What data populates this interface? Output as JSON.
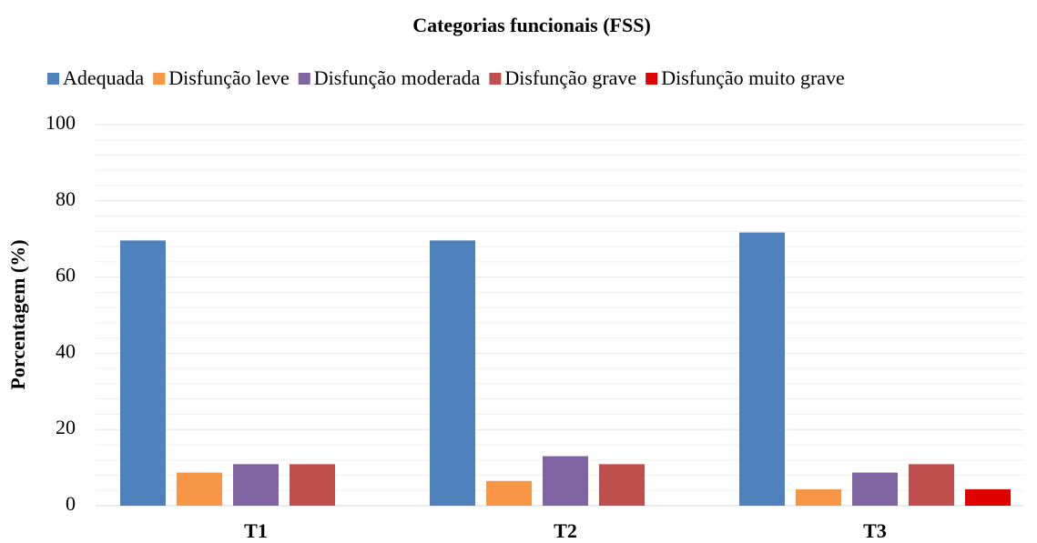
{
  "chart_data": {
    "type": "bar",
    "title": "Categorias funcionais (FSS)",
    "y_label": "Porcentagem (%)",
    "categories": [
      "T1",
      "T2",
      "T3"
    ],
    "series": [
      {
        "name": "Adequada",
        "color": "#4f81bd",
        "values": [
          69.6,
          69.6,
          71.7
        ]
      },
      {
        "name": "Disfunção leve",
        "color": "#f79646",
        "values": [
          8.7,
          6.5,
          4.3
        ]
      },
      {
        "name": "Disfunção moderada",
        "color": "#8064a2",
        "values": [
          10.9,
          13.0,
          8.7
        ]
      },
      {
        "name": "Disfunção grave",
        "color": "#c0504d",
        "values": [
          10.9,
          10.9,
          10.9
        ]
      },
      {
        "name": "Disfunção muito grave",
        "color": "#e00000",
        "values": [
          0,
          0,
          4.3
        ]
      }
    ],
    "ylim": [
      0,
      100
    ],
    "yticks": [
      0,
      20,
      40,
      60,
      80,
      100
    ],
    "grid": true,
    "minor_grid": true,
    "legend": "top"
  }
}
